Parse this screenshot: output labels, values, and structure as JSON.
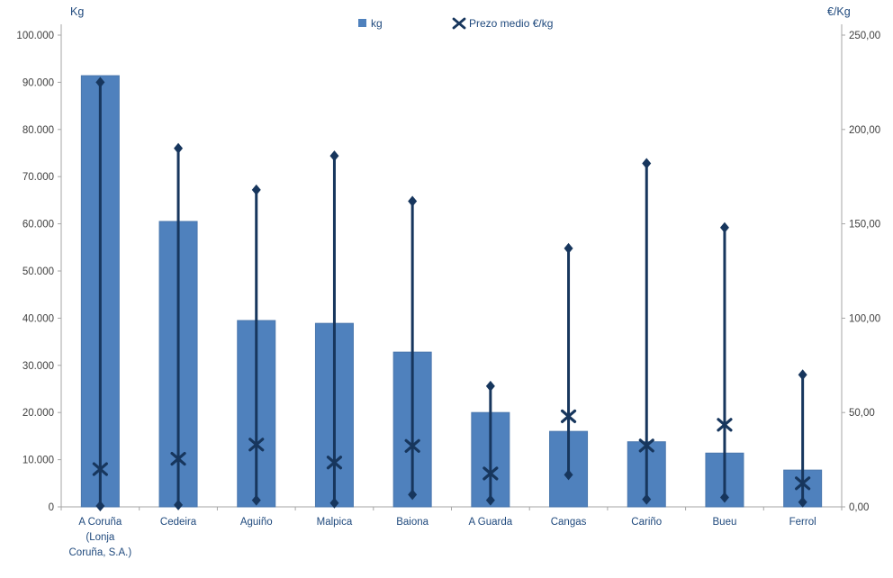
{
  "window": {
    "background": "#ffffff"
  },
  "chart_data": {
    "type": "bar",
    "title": "",
    "subtitle": "",
    "grid": "off",
    "legend_position": "top-center",
    "categories": [
      "A Coruña (Lonja Coruña, S.A.)",
      "Cedeira",
      "Aguiño",
      "Malpica",
      "Baiona",
      "A Guarda",
      "Cangas",
      "Cariño",
      "Bueu",
      "Ferrol"
    ],
    "category_label_lines": [
      [
        "A Coruña",
        "(Lonja",
        "Coruña, S.A.)"
      ],
      [
        "Cedeira"
      ],
      [
        "Aguiño"
      ],
      [
        "Malpica"
      ],
      [
        "Baiona"
      ],
      [
        "A Guarda"
      ],
      [
        "Cangas"
      ],
      [
        "Cariño"
      ],
      [
        "Bueu"
      ],
      [
        "Ferrol"
      ]
    ],
    "series": [
      {
        "name": "kg",
        "chart_type": "column",
        "axis": "left",
        "color": "#4f81bd",
        "values": [
          91400,
          60500,
          39500,
          38900,
          32800,
          20000,
          16000,
          13800,
          11400,
          7800
        ]
      },
      {
        "name": "Prezo medio €/kg",
        "chart_type": "scatter",
        "marker": "x",
        "axis": "right",
        "color": "#17365d",
        "values": [
          20.0,
          25.5,
          33.0,
          23.5,
          32.3,
          17.7,
          48.0,
          32.5,
          43.5,
          12.5
        ]
      },
      {
        "name": "",
        "chart_type": "high-low",
        "marker": "diamond",
        "axis": "right",
        "color": "#17365d",
        "high": [
          225,
          190,
          168,
          186,
          162,
          64,
          137,
          182,
          148,
          70
        ],
        "low": [
          0.5,
          1.0,
          3.5,
          2.0,
          6.5,
          3.5,
          17.0,
          4.0,
          5.0,
          2.5
        ]
      }
    ],
    "left_axis": {
      "title": "Kg",
      "min": 0,
      "max": 100000,
      "tick_labels": [
        "0",
        "10.000",
        "20.000",
        "30.000",
        "40.000",
        "50.000",
        "60.000",
        "70.000",
        "80.000",
        "90.000",
        "100.000"
      ]
    },
    "right_axis": {
      "title": "€/Kg",
      "min": 0,
      "max": 250,
      "tick_labels": [
        "0,00",
        "50,00",
        "100,00",
        "150,00",
        "200,00",
        "250,00"
      ]
    },
    "legend": [
      {
        "marker": "square",
        "label": "kg"
      },
      {
        "marker": "x",
        "label": "Prezo medio €/kg"
      }
    ],
    "colors": {
      "bar": "#4f81bd",
      "bar_edge": "#4a77ad",
      "line": "#17365d",
      "axis_line": "#a6a6a6",
      "tick_text": "#3f3f3f",
      "label_text": "#1f497d"
    }
  }
}
